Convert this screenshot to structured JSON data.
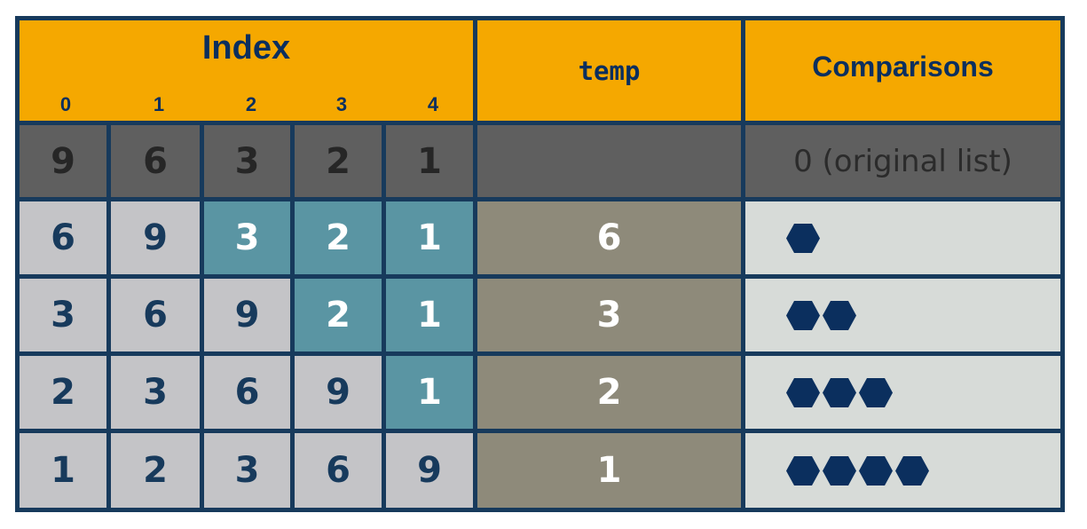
{
  "header": {
    "index_title": "Index",
    "indices": [
      "0",
      "1",
      "2",
      "3",
      "4"
    ],
    "temp": "temp",
    "comparisons": "Comparisons"
  },
  "original": {
    "values": [
      "9",
      "6",
      "3",
      "2",
      "1"
    ],
    "label": "0  (original list)"
  },
  "rows": [
    {
      "values": [
        "6",
        "9",
        "3",
        "2",
        "1"
      ],
      "temp": "6",
      "comparisons": 1,
      "highlighted_from_index": 2
    },
    {
      "values": [
        "3",
        "6",
        "9",
        "2",
        "1"
      ],
      "temp": "3",
      "comparisons": 2,
      "highlighted_from_index": 3
    },
    {
      "values": [
        "2",
        "3",
        "6",
        "9",
        "1"
      ],
      "temp": "2",
      "comparisons": 3,
      "highlighted_from_index": 4
    },
    {
      "values": [
        "1",
        "2",
        "3",
        "6",
        "9"
      ],
      "temp": "1",
      "comparisons": 4,
      "highlighted_from_index": 5
    }
  ],
  "colors": {
    "header": "#f5a800",
    "header_text": "#0b2f5e",
    "border": "#173a5c",
    "original_row": "#5f5f5f",
    "unsorted_cell": "#5a95a3",
    "sorted_cell": "#c4c4c7",
    "temp_cell": "#8e8a7a",
    "comparison_cell": "#d7dbd8",
    "hexagon": "#0b2f5e"
  },
  "icons": {
    "comparison_marker": "hexagon-icon"
  }
}
